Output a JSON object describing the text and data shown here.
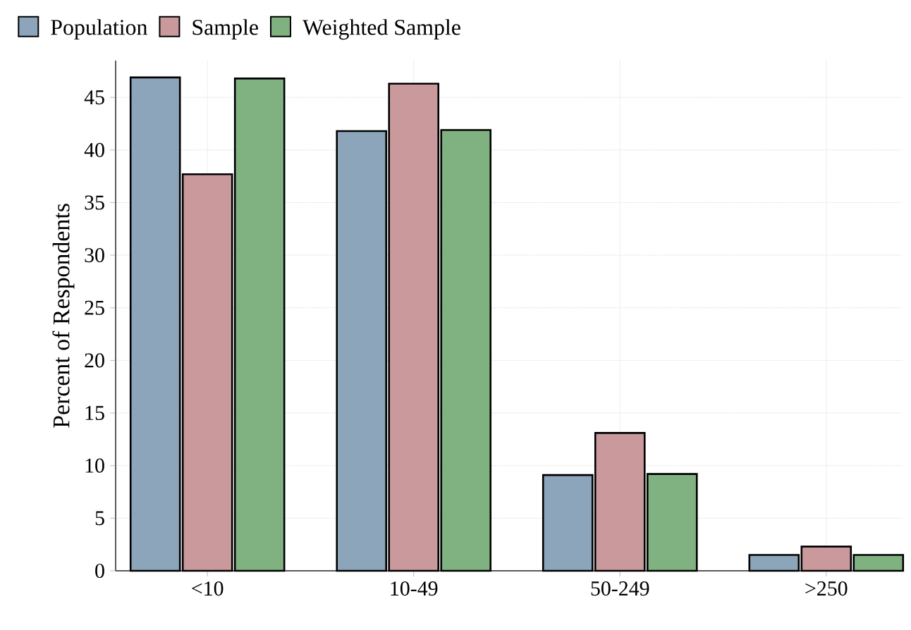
{
  "chart_data": {
    "type": "bar",
    "ylabel": "Percent of Respondents",
    "categories": [
      "<10",
      "10-49",
      "50-249",
      ">250"
    ],
    "series": [
      {
        "name": "Population",
        "color": "#8ca5bb",
        "values": [
          46.9,
          41.8,
          9.1,
          1.5
        ]
      },
      {
        "name": "Sample",
        "color": "#c9999c",
        "values": [
          37.7,
          46.3,
          13.1,
          2.3
        ]
      },
      {
        "name": "Weighted Sample",
        "color": "#80b281",
        "values": [
          46.8,
          41.9,
          9.2,
          1.5
        ]
      }
    ],
    "ylim": [
      0,
      48.5
    ],
    "yticks": [
      0,
      5,
      10,
      15,
      20,
      25,
      30,
      35,
      40,
      45
    ],
    "grid": true,
    "legend": "top left"
  }
}
